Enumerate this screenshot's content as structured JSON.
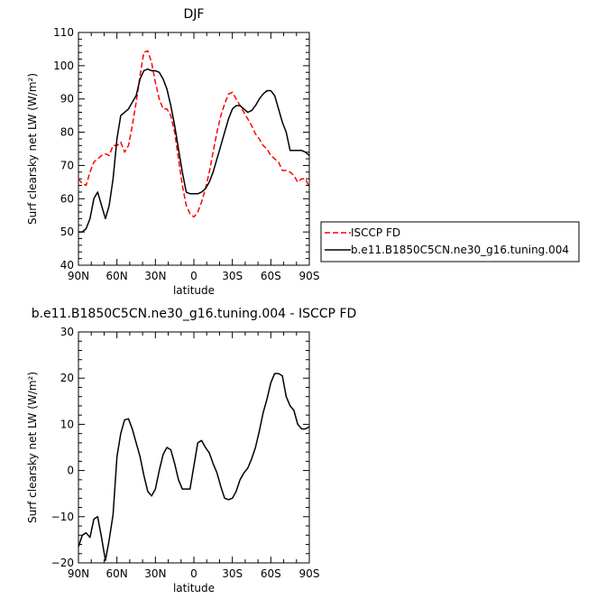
{
  "chart_data": [
    {
      "type": "line",
      "title": "DJF",
      "xlabel": "latitude",
      "ylabel": "Surf clearsky net LW (W/m²)",
      "xlim": [
        90,
        -90
      ],
      "ylim": [
        40,
        110
      ],
      "xticks": [
        90,
        60,
        30,
        0,
        -30,
        -60,
        -90
      ],
      "xtick_labels": [
        "90N",
        "60N",
        "30N",
        "0",
        "30S",
        "60S",
        "90S"
      ],
      "yticks": [
        40,
        50,
        60,
        70,
        80,
        90,
        100,
        110
      ],
      "ytick_labels": [
        "40",
        "50",
        "60",
        "70",
        "80",
        "90",
        "100",
        "110"
      ],
      "legend_position": "right",
      "series": [
        {
          "name": "ISCCP FD",
          "color": "#ff0000",
          "dash": "dashed",
          "x": [
            90,
            87,
            84,
            81,
            78,
            75,
            72,
            69,
            66,
            63,
            60,
            57,
            54,
            51,
            48,
            45,
            42,
            39,
            36,
            33,
            30,
            27,
            24,
            21,
            18,
            15,
            12,
            9,
            6,
            3,
            0,
            -3,
            -6,
            -9,
            -12,
            -15,
            -18,
            -21,
            -24,
            -27,
            -30,
            -33,
            -36,
            -39,
            -42,
            -45,
            -48,
            -51,
            -54,
            -57,
            -60,
            -63,
            -66,
            -69,
            -72,
            -75,
            -78,
            -81,
            -84,
            -87,
            -90
          ],
          "y": [
            66,
            64.5,
            64,
            68,
            71,
            72,
            73,
            73.5,
            73,
            76,
            76,
            77,
            74,
            76,
            82,
            89,
            97,
            104,
            104.5,
            101,
            95,
            90,
            87,
            87,
            85,
            80,
            72,
            64,
            58,
            55.5,
            54.5,
            56,
            59,
            63,
            68,
            74,
            80,
            85,
            88.5,
            91.5,
            92,
            90,
            88,
            86,
            84,
            82,
            79.5,
            78,
            76,
            75,
            73,
            72,
            71,
            68.5,
            68.5,
            68,
            67,
            65,
            66,
            66,
            63.5
          ]
        },
        {
          "name": "b.e11.B1850C5CN.ne30_g16.tuning.004",
          "color": "#000000",
          "dash": "solid",
          "x": [
            90,
            87,
            84,
            81,
            78,
            75,
            72,
            69,
            66,
            63,
            60,
            57,
            54,
            51,
            48,
            45,
            42,
            39,
            36,
            33,
            30,
            27,
            24,
            21,
            18,
            15,
            12,
            9,
            6,
            3,
            0,
            -3,
            -6,
            -9,
            -12,
            -15,
            -18,
            -21,
            -24,
            -27,
            -30,
            -33,
            -36,
            -39,
            -42,
            -45,
            -48,
            -51,
            -54,
            -57,
            -60,
            -63,
            -66,
            -69,
            -72,
            -75,
            -78,
            -81,
            -84,
            -87,
            -90
          ],
          "y": [
            50,
            50,
            51,
            54,
            60,
            62,
            58,
            54,
            58,
            66,
            78,
            85,
            86,
            87,
            89,
            91,
            96,
            98.5,
            99,
            98.5,
            98.5,
            98,
            96,
            93,
            88,
            82,
            75,
            68,
            62,
            61.5,
            61.5,
            61.5,
            62,
            63,
            65,
            68,
            72,
            76,
            80,
            84,
            87,
            88,
            88,
            87,
            86,
            86.5,
            88,
            90,
            91.5,
            92.5,
            92.5,
            91,
            87,
            83,
            80,
            74.5,
            74.5,
            74.5,
            74.5,
            74,
            73
          ]
        }
      ]
    },
    {
      "type": "line",
      "title": "b.e11.B1850C5CN.ne30_g16.tuning.004 - ISCCP FD",
      "xlabel": "latitude",
      "ylabel": "Surf clearsky net LW (W/m²)",
      "xlim": [
        90,
        -90
      ],
      "ylim": [
        -20,
        30
      ],
      "xticks": [
        90,
        60,
        30,
        0,
        -30,
        -60,
        -90
      ],
      "xtick_labels": [
        "90N",
        "60N",
        "30N",
        "0",
        "30S",
        "60S",
        "90S"
      ],
      "yticks": [
        -20,
        -10,
        0,
        10,
        20,
        30
      ],
      "ytick_labels": [
        "−20",
        "−10",
        "0",
        "10",
        "20",
        "30"
      ],
      "series": [
        {
          "name": "",
          "color": "#000000",
          "dash": "solid",
          "x": [
            90,
            87,
            84,
            81,
            78,
            75,
            72,
            69,
            66,
            63,
            60,
            57,
            54,
            51,
            48,
            45,
            42,
            39,
            36,
            33,
            30,
            27,
            24,
            21,
            18,
            15,
            12,
            9,
            6,
            3,
            0,
            -3,
            -6,
            -9,
            -12,
            -15,
            -18,
            -21,
            -24,
            -27,
            -30,
            -33,
            -36,
            -39,
            -42,
            -45,
            -48,
            -51,
            -54,
            -57,
            -60,
            -63,
            -66,
            -69,
            -72,
            -75,
            -78,
            -81,
            -84,
            -87,
            -90
          ],
          "y": [
            -16.5,
            -14,
            -13.5,
            -14.5,
            -10.5,
            -10,
            -14.5,
            -19.5,
            -15,
            -9.5,
            3,
            8,
            11,
            11.2,
            9,
            6,
            3,
            -1,
            -4.5,
            -5.5,
            -4,
            0,
            3.5,
            5,
            4.5,
            1.5,
            -2,
            -4,
            -4,
            -4,
            1,
            6,
            6.5,
            5,
            3.8,
            1.5,
            -0.5,
            -3.5,
            -6,
            -6.3,
            -6,
            -4.5,
            -2,
            -0.5,
            0.5,
            2.5,
            5,
            8.5,
            12.5,
            15.5,
            19,
            21,
            21,
            20.5,
            16,
            14,
            13,
            10,
            9,
            9,
            9.5
          ]
        }
      ]
    }
  ]
}
